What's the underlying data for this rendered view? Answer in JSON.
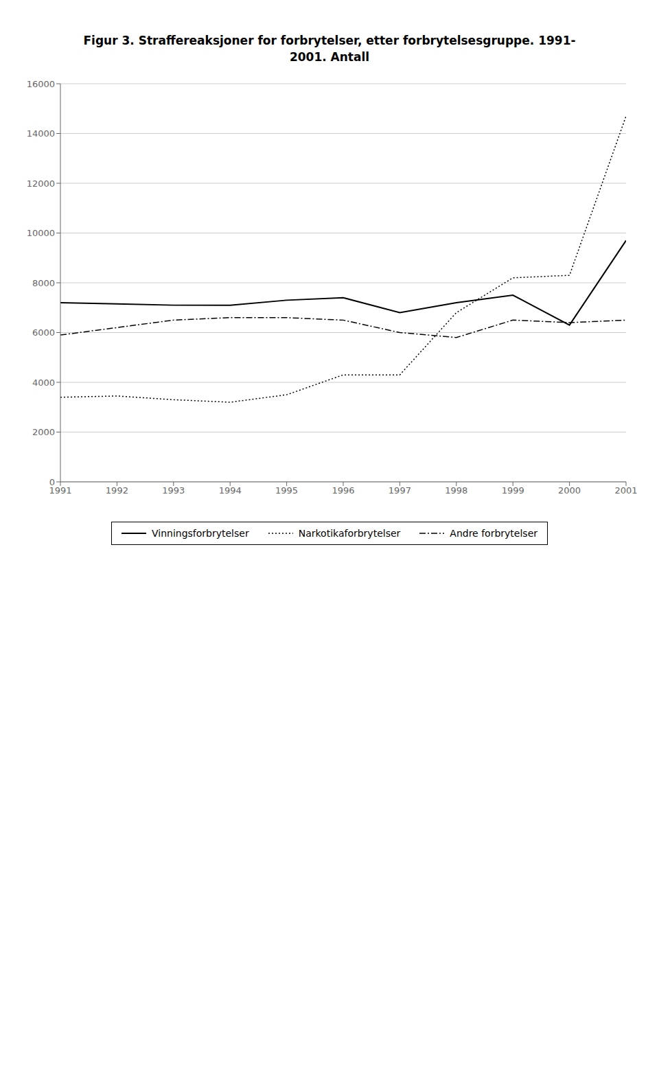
{
  "chart_data": {
    "type": "line",
    "title": [
      "Figur 3. Straffereaksjoner for forbrytelser, etter forbrytelsesgruppe. 1991-",
      "2001. Antall"
    ],
    "x": [
      1991,
      1992,
      1993,
      1994,
      1995,
      1996,
      1997,
      1998,
      1999,
      2000,
      2001
    ],
    "xlim": [
      1991,
      2001
    ],
    "xticks": [
      1991,
      1992,
      1993,
      1994,
      1995,
      1996,
      1997,
      1998,
      1999,
      2000,
      2001
    ],
    "ylim": [
      0,
      16000
    ],
    "yticks": [
      0,
      2000,
      4000,
      6000,
      8000,
      10000,
      12000,
      14000,
      16000
    ],
    "grid": "y",
    "legend": "bottom",
    "series": [
      {
        "name": "Vinningsforbrytelser",
        "color": "#000000",
        "line_style": "solid",
        "values": [
          7200,
          7150,
          7100,
          7100,
          7300,
          7400,
          6800,
          7200,
          7500,
          6300,
          9700
        ]
      },
      {
        "name": "Narkotikaforbrytelser",
        "color": "#000000",
        "line_style": "dotted",
        "values": [
          3400,
          3450,
          3300,
          3200,
          3500,
          4300,
          4300,
          6800,
          8200,
          8300,
          14700
        ]
      },
      {
        "name": "Andre forbrytelser",
        "color": "#000000",
        "line_style": "dashdot",
        "values": [
          5900,
          6200,
          6500,
          6600,
          6600,
          6500,
          6000,
          5800,
          6500,
          6400,
          6500
        ]
      }
    ]
  }
}
